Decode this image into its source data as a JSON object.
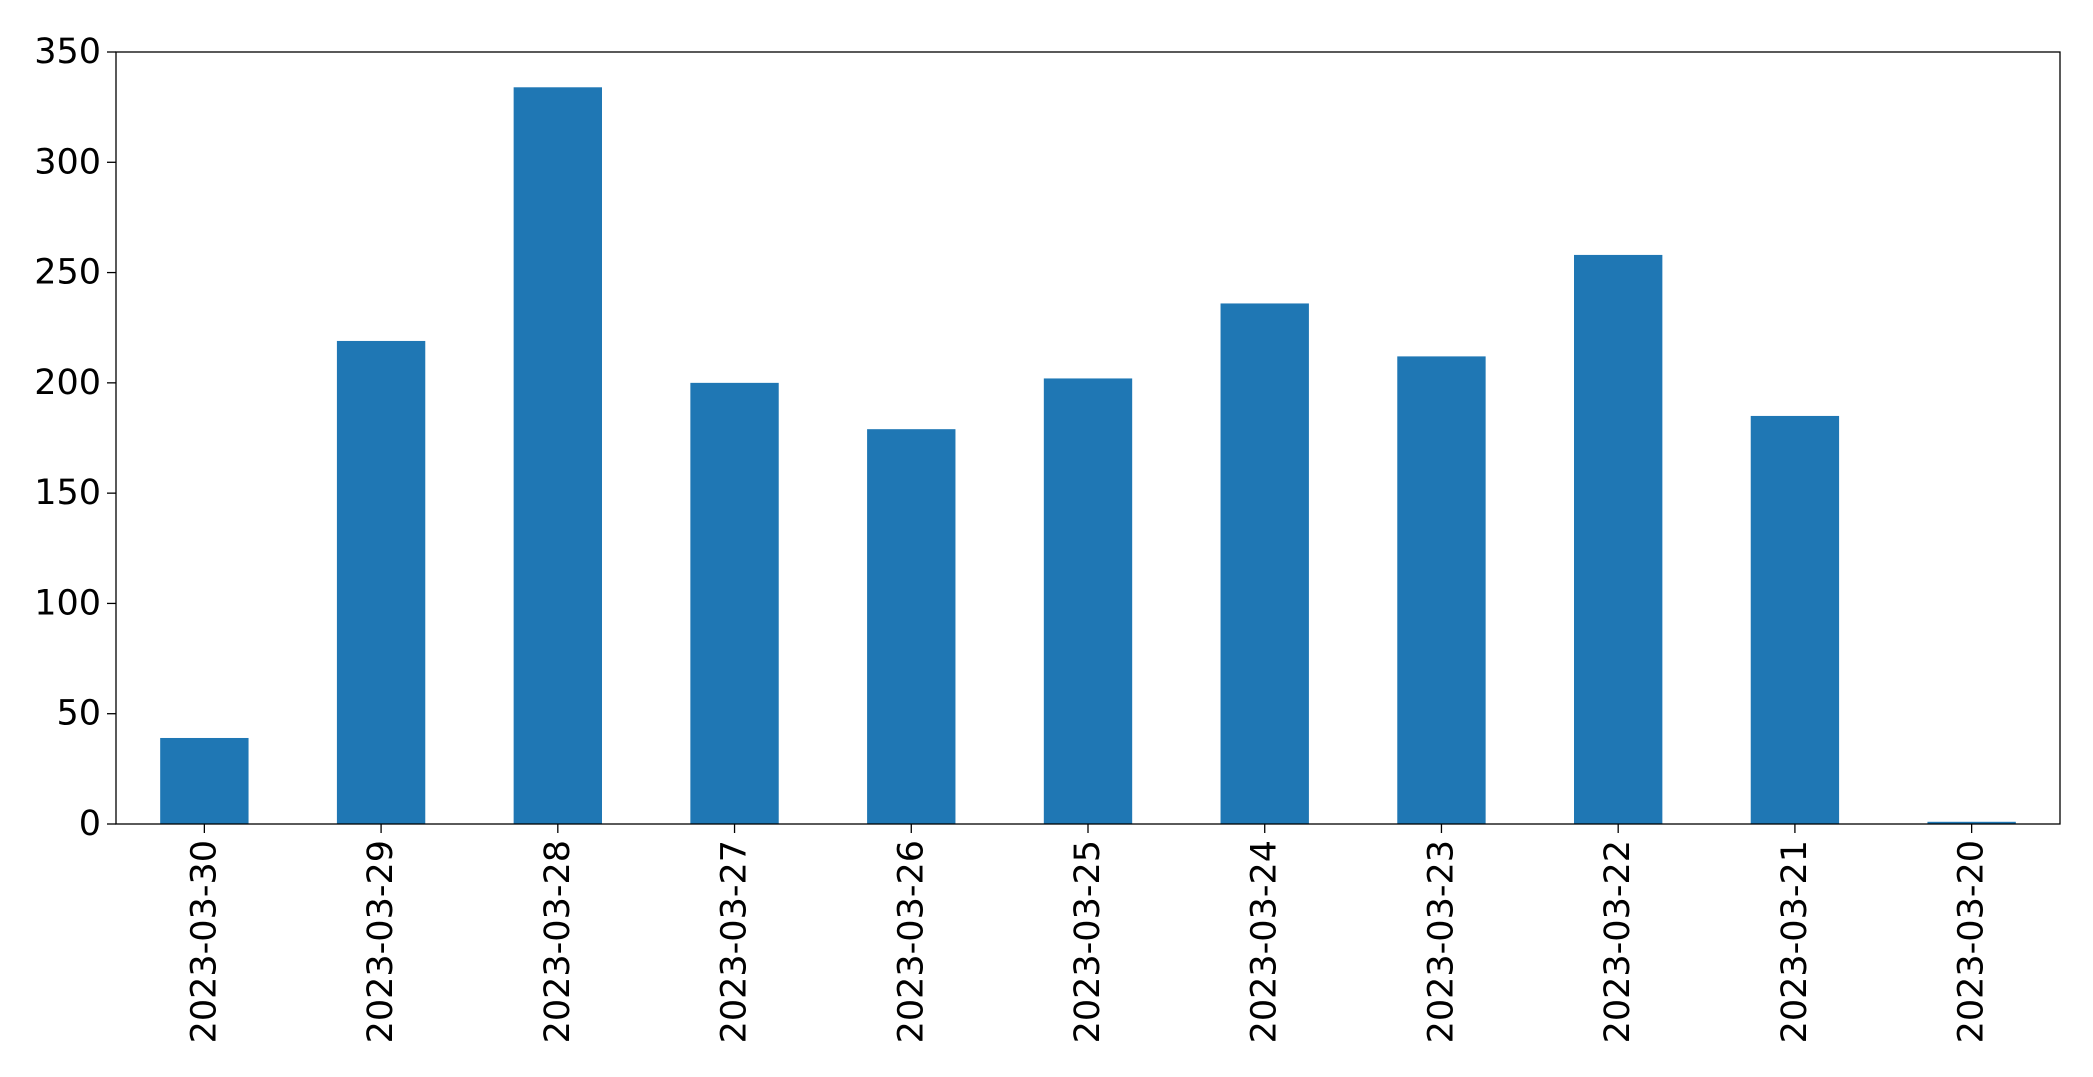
{
  "chart_data": {
    "type": "bar",
    "title": "",
    "xlabel": "",
    "ylabel": "",
    "categories": [
      "2023-03-30",
      "2023-03-29",
      "2023-03-28",
      "2023-03-27",
      "2023-03-26",
      "2023-03-25",
      "2023-03-24",
      "2023-03-23",
      "2023-03-22",
      "2023-03-21",
      "2023-03-20"
    ],
    "values": [
      39,
      219,
      334,
      200,
      179,
      202,
      236,
      212,
      258,
      185,
      1
    ],
    "ylim": [
      0,
      350
    ],
    "yticks": [
      0,
      50,
      100,
      150,
      200,
      250,
      300,
      350
    ],
    "ytick_labels": [
      "0",
      "50",
      "100",
      "150",
      "200",
      "250",
      "300",
      "350"
    ],
    "grid": false,
    "legend": "none",
    "colors": {
      "bar": "#1f77b4",
      "axes": "#000000",
      "background": "#ffffff"
    }
  }
}
